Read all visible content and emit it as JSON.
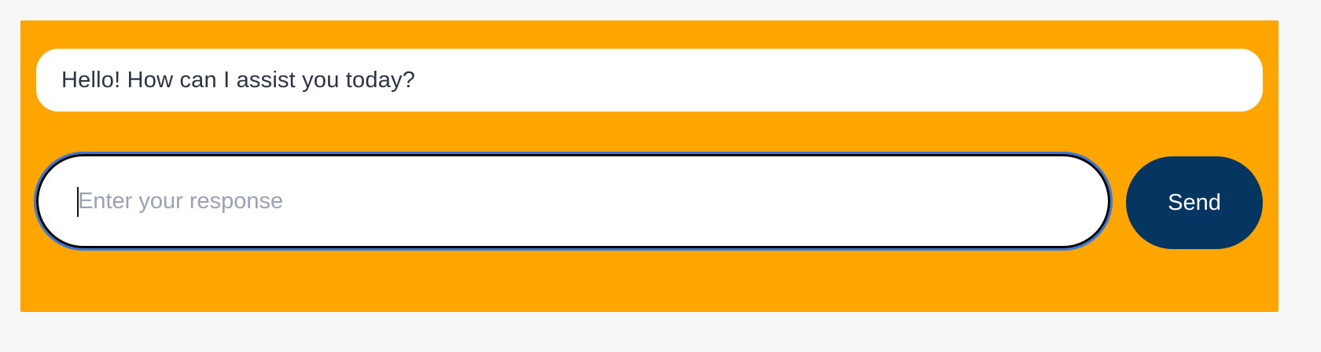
{
  "chat": {
    "message": "Hello! How can I assist you today?"
  },
  "composer": {
    "value": "",
    "placeholder": "Enter your response",
    "send_label": "Send"
  },
  "colors": {
    "panel_background": "#ffa500",
    "send_button": "#053561",
    "focus_ring": "#3b78d8",
    "page_background": "#f7f7f8"
  }
}
